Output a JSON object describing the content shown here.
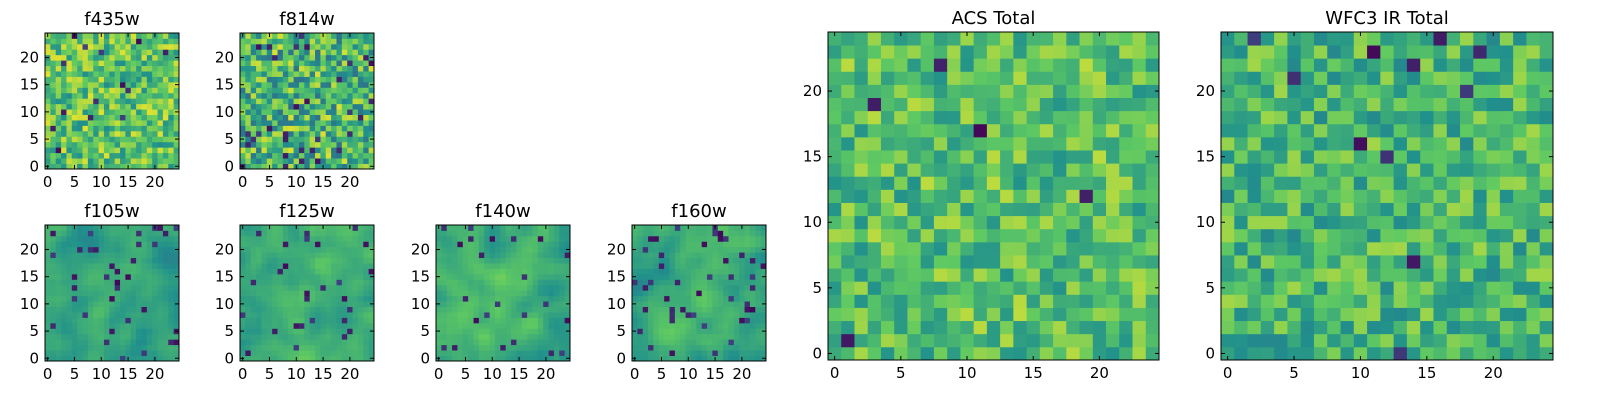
{
  "figure": {
    "colormap": [
      "#440154",
      "#3b528b",
      "#21918c",
      "#5ec962",
      "#fde725"
    ]
  },
  "chart_data": [
    {
      "id": "f435w",
      "type": "heatmap",
      "title": "f435w",
      "grid": [
        25,
        25
      ],
      "xlim": [
        0,
        24
      ],
      "ylim": [
        0,
        24
      ],
      "xticks": [
        0,
        5,
        10,
        15,
        20
      ],
      "yticks": [
        0,
        5,
        10,
        15,
        20
      ],
      "pattern": "noise",
      "seed": 11,
      "mean": 0.72,
      "spread": 0.13,
      "dark_freq": 0.035
    },
    {
      "id": "f814w",
      "type": "heatmap",
      "title": "f814w",
      "grid": [
        25,
        25
      ],
      "xlim": [
        0,
        24
      ],
      "ylim": [
        0,
        24
      ],
      "xticks": [
        0,
        5,
        10,
        15,
        20
      ],
      "yticks": [
        0,
        5,
        10,
        15,
        20
      ],
      "pattern": "noise",
      "seed": 23,
      "mean": 0.66,
      "spread": 0.16,
      "dark_freq": 0.045
    },
    {
      "id": "f105w",
      "type": "heatmap",
      "title": "f105w",
      "grid": [
        25,
        25
      ],
      "xlim": [
        0,
        24
      ],
      "ylim": [
        0,
        24
      ],
      "xticks": [
        0,
        5,
        10,
        15,
        20
      ],
      "yticks": [
        0,
        5,
        10,
        15,
        20
      ],
      "pattern": "smooth",
      "seed": 37,
      "mean": 0.56,
      "spread": 0.14,
      "dark_freq": 0.06
    },
    {
      "id": "f125w",
      "type": "heatmap",
      "title": "f125w",
      "grid": [
        25,
        25
      ],
      "xlim": [
        0,
        24
      ],
      "ylim": [
        0,
        24
      ],
      "xticks": [
        0,
        5,
        10,
        15,
        20
      ],
      "yticks": [
        0,
        5,
        10,
        15,
        20
      ],
      "pattern": "smooth",
      "seed": 41,
      "mean": 0.6,
      "spread": 0.15,
      "dark_freq": 0.05
    },
    {
      "id": "f140w",
      "type": "heatmap",
      "title": "f140w",
      "grid": [
        25,
        25
      ],
      "xlim": [
        0,
        24
      ],
      "ylim": [
        0,
        24
      ],
      "xticks": [
        0,
        5,
        10,
        15,
        20
      ],
      "yticks": [
        0,
        5,
        10,
        15,
        20
      ],
      "pattern": "smooth",
      "seed": 53,
      "mean": 0.62,
      "spread": 0.15,
      "dark_freq": 0.045
    },
    {
      "id": "f160w",
      "type": "heatmap",
      "title": "f160w",
      "grid": [
        25,
        25
      ],
      "xlim": [
        0,
        24
      ],
      "ylim": [
        0,
        24
      ],
      "xticks": [
        0,
        5,
        10,
        15,
        20
      ],
      "yticks": [
        0,
        5,
        10,
        15,
        20
      ],
      "pattern": "smooth",
      "seed": 67,
      "mean": 0.6,
      "spread": 0.15,
      "dark_freq": 0.05
    },
    {
      "id": "acs_total",
      "type": "heatmap",
      "title": "ACS Total",
      "grid": [
        25,
        25
      ],
      "xlim": [
        0,
        24
      ],
      "ylim": [
        0,
        24
      ],
      "xticks": [
        0,
        5,
        10,
        15,
        20
      ],
      "yticks": [
        0,
        5,
        10,
        15,
        20
      ],
      "pattern": "noise",
      "seed": 79,
      "mean": 0.7,
      "spread": 0.11,
      "dark_freq": 0.018
    },
    {
      "id": "wfc3_ir_total",
      "type": "heatmap",
      "title": "WFC3 IR Total",
      "grid": [
        25,
        25
      ],
      "xlim": [
        0,
        24
      ],
      "ylim": [
        0,
        24
      ],
      "xticks": [
        0,
        5,
        10,
        15,
        20
      ],
      "yticks": [
        0,
        5,
        10,
        15,
        20
      ],
      "pattern": "noise",
      "seed": 97,
      "mean": 0.66,
      "spread": 0.11,
      "dark_freq": 0.02
    }
  ]
}
